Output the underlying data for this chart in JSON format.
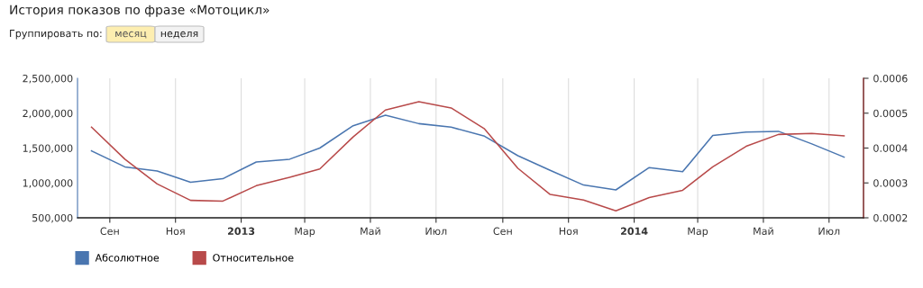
{
  "chart_data": {
    "type": "line",
    "title": "История показов по фразе «Мотоцикл»",
    "annotations": [
      "Группировать по:",
      "месяц",
      "неделя"
    ],
    "x": [
      "2012-08-15",
      "2012-09-15",
      "2012-10-15",
      "2012-11-15",
      "2012-12-15",
      "2013-01-15",
      "2013-02-15",
      "2013-03-15",
      "2013-04-15",
      "2013-05-15",
      "2013-06-15",
      "2013-07-15",
      "2013-08-15",
      "2013-09-15",
      "2013-10-15",
      "2013-11-15",
      "2013-12-15",
      "2014-01-15",
      "2014-02-15",
      "2014-03-15",
      "2014-04-15",
      "2014-05-15",
      "2014-06-15",
      "2014-07-15"
    ],
    "series": [
      {
        "name": "Абсолютное",
        "color": "#4a76b0",
        "values": [
          1460000,
          1230000,
          1170000,
          1010000,
          1060000,
          1300000,
          1340000,
          1500000,
          1820000,
          1970000,
          1850000,
          1800000,
          1670000,
          1390000,
          1180000,
          970000,
          900000,
          1220000,
          1160000,
          1680000,
          1730000,
          1740000,
          1560000,
          1370000
        ]
      },
      {
        "name": "Относительное",
        "color": "#b84a4a",
        "axis": "y2",
        "values": [
          0.00046,
          0.000368,
          0.000297,
          0.00025,
          0.000248,
          0.000292,
          0.000316,
          0.00034,
          0.000432,
          0.000509,
          0.000533,
          0.000515,
          0.000455,
          0.000342,
          0.000267,
          0.000251,
          0.00022,
          0.000258,
          0.000279,
          0.000346,
          0.000405,
          0.000439,
          0.000442,
          0.000435
        ]
      }
    ],
    "xlim": [
      "2012-08-02",
      "2014-08-02"
    ],
    "xticks": [
      {
        "value": "2012-09-01",
        "label": "Сен"
      },
      {
        "value": "2012-11-01",
        "label": "Ноя"
      },
      {
        "value": "2013-01-01",
        "label": "2013"
      },
      {
        "value": "2013-03-01",
        "label": "Мар"
      },
      {
        "value": "2013-05-01",
        "label": "Май"
      },
      {
        "value": "2013-07-01",
        "label": "Июл"
      },
      {
        "value": "2013-09-01",
        "label": "Сен"
      },
      {
        "value": "2013-11-01",
        "label": "Ноя"
      },
      {
        "value": "2014-01-01",
        "label": "2014"
      },
      {
        "value": "2014-03-01",
        "label": "Мар"
      },
      {
        "value": "2014-05-01",
        "label": "Май"
      },
      {
        "value": "2014-07-01",
        "label": "Июл"
      }
    ],
    "ylim": [
      500000,
      2500000
    ],
    "yticks": [
      {
        "value": 500000,
        "label": "500,000"
      },
      {
        "value": 1000000,
        "label": "1,000,000"
      },
      {
        "value": 1500000,
        "label": "1,500,000"
      },
      {
        "value": 2000000,
        "label": "2,000,000"
      },
      {
        "value": 2500000,
        "label": "2,500,000"
      }
    ],
    "y2lim": [
      0.0002,
      0.0006
    ],
    "y2ticks": [
      0.0002,
      0.0003,
      0.0004,
      0.0005,
      0.0006
    ],
    "grid": "x",
    "legend": "bottom left",
    "marker": "none",
    "line_style": "solid"
  }
}
